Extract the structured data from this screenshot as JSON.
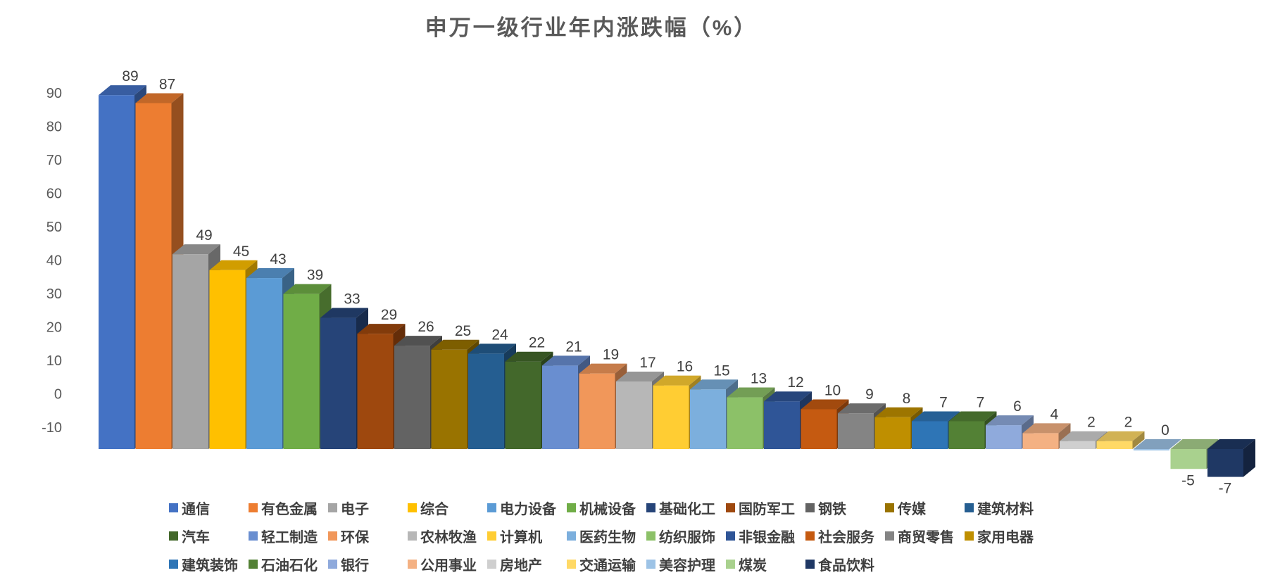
{
  "chart_data": {
    "type": "bar",
    "variant": "3d-column",
    "title": "申万一级行业年内涨跌幅（%）",
    "categories": [
      "通信",
      "有色金属",
      "电子",
      "综合",
      "电力设备",
      "机械设备",
      "基础化工",
      "国防军工",
      "钢铁",
      "传媒",
      "建筑材料",
      "汽车",
      "轻工制造",
      "环保",
      "农林牧渔",
      "计算机",
      "医药生物",
      "纺织服饰",
      "非银金融",
      "社会服务",
      "商贸零售",
      "家用电器",
      "建筑装饰",
      "石油石化",
      "银行",
      "公用事业",
      "房地产",
      "交通运输",
      "美容护理",
      "煤炭",
      "食品饮料"
    ],
    "values": [
      89,
      87,
      49,
      45,
      43,
      39,
      33,
      29,
      26,
      25,
      24,
      22,
      21,
      19,
      17,
      16,
      15,
      13,
      12,
      10,
      9,
      8,
      7,
      7,
      6,
      4,
      2,
      2,
      0,
      -5,
      -7
    ],
    "series_colors": [
      "#4472C4",
      "#ED7D31",
      "#A5A5A5",
      "#FFC000",
      "#5B9BD5",
      "#70AD47",
      "#264478",
      "#9E480E",
      "#636363",
      "#997300",
      "#255E91",
      "#43682B",
      "#698ED0",
      "#F1975A",
      "#B7B7B7",
      "#FFCD33",
      "#7CAFDD",
      "#8CC168",
      "#2F5597",
      "#C55A11",
      "#848484",
      "#BF8F00",
      "#2E75B6",
      "#538135",
      "#8FAADC",
      "#F4B183",
      "#CFCFCF",
      "#FFD966",
      "#9DC3E6",
      "#A9D18E",
      "#1F3864"
    ],
    "xlabel": "",
    "ylabel": "",
    "ylim": [
      -10,
      90
    ],
    "yticks": [
      90,
      80,
      70,
      60,
      50,
      40,
      30,
      20,
      10,
      0,
      -10
    ],
    "grid": false,
    "legend_position": "bottom",
    "legend_rows": [
      11,
      11,
      9
    ]
  }
}
